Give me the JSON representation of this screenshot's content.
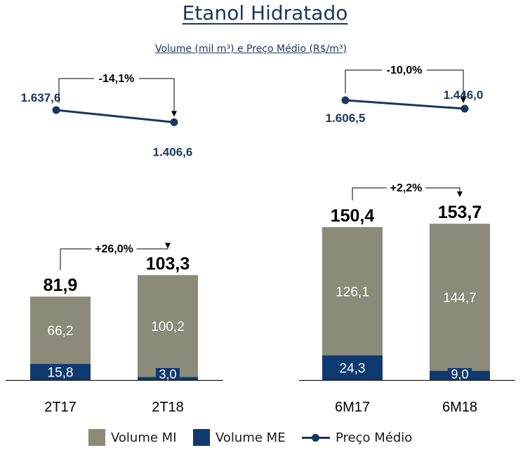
{
  "title": "Etanol Hidratado",
  "subtitle": "Volume (mil m³) e Preço Médio (R$/m³)",
  "colors": {
    "mi": "#8c8a78",
    "me": "#0f3a70",
    "line": "#17375e",
    "text": "#000000"
  },
  "chart_data": [
    {
      "type": "line",
      "title": "",
      "series": [
        {
          "name": "Preço Médio",
          "x": [
            "2T17",
            "2T18"
          ],
          "values": [
            1637.6,
            1406.6
          ],
          "labels": [
            "1.637,6",
            "1.406,6"
          ]
        }
      ],
      "change_label": "-14,1%"
    },
    {
      "type": "line",
      "title": "",
      "series": [
        {
          "name": "Preço Médio",
          "x": [
            "6M17",
            "6M18"
          ],
          "values": [
            1606.5,
            1446.0
          ],
          "labels": [
            "1.606,5",
            "1.446,0"
          ]
        }
      ],
      "change_label": "-10,0%"
    },
    {
      "type": "bar",
      "stacked": true,
      "categories": [
        "2T17",
        "2T18"
      ],
      "series": [
        {
          "name": "Volume ME",
          "values": [
            15.8,
            3.0
          ],
          "labels": [
            "15,8",
            "3,0"
          ]
        },
        {
          "name": "Volume MI",
          "values": [
            66.2,
            100.2
          ],
          "labels": [
            "66,2",
            "100,2"
          ]
        }
      ],
      "totals": [
        81.9,
        103.3
      ],
      "total_labels": [
        "81,9",
        "103,3"
      ],
      "change_label": "+26,0%"
    },
    {
      "type": "bar",
      "stacked": true,
      "categories": [
        "6M17",
        "6M18"
      ],
      "series": [
        {
          "name": "Volume ME",
          "values": [
            24.3,
            9.0
          ],
          "labels": [
            "24,3",
            "9,0"
          ]
        },
        {
          "name": "Volume MI",
          "values": [
            126.1,
            144.7
          ],
          "labels": [
            "126,1",
            "144,7"
          ]
        }
      ],
      "totals": [
        150.4,
        153.7
      ],
      "total_labels": [
        "150,4",
        "153,7"
      ],
      "change_label": "+2,2%"
    }
  ],
  "legend": {
    "mi": "Volume MI",
    "me": "Volume ME",
    "line": "Preço Médio"
  }
}
